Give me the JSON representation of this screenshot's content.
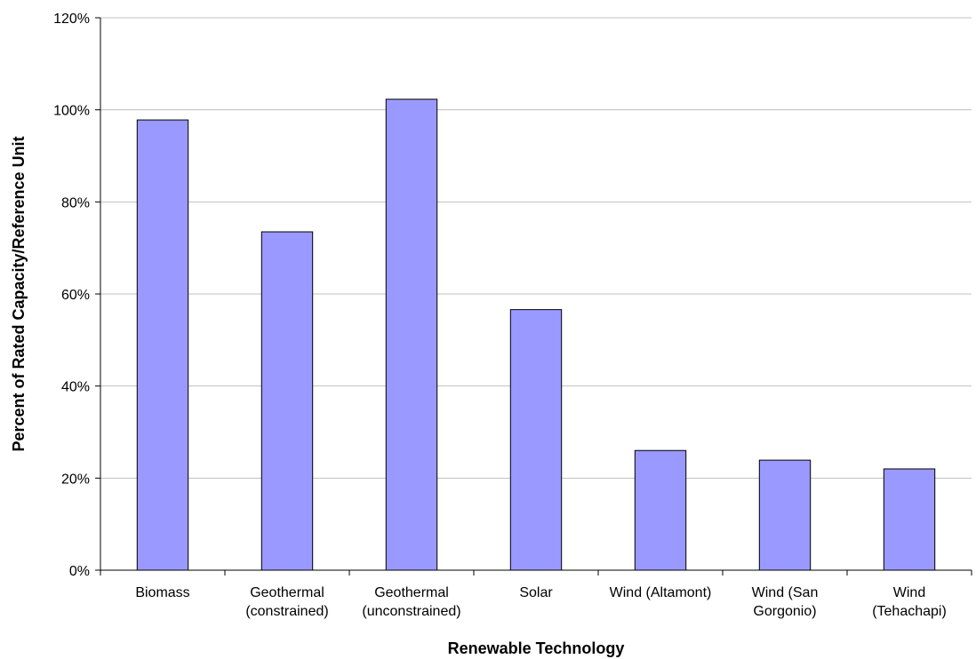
{
  "chart_data": {
    "type": "bar",
    "title": "",
    "xlabel": "Renewable Technology",
    "ylabel": "Percent of Rated Capacity/Reference Unit",
    "categories": [
      [
        "Biomass"
      ],
      [
        "Geothermal",
        "(constrained)"
      ],
      [
        "Geothermal",
        "(unconstrained)"
      ],
      [
        "Solar"
      ],
      [
        "Wind (Altamont)"
      ],
      [
        "Wind (San",
        "Gorgonio)"
      ],
      [
        "Wind",
        "(Tehachapi)"
      ]
    ],
    "values": [
      97.8,
      73.5,
      102.3,
      56.6,
      26.0,
      23.9,
      22.0
    ],
    "ylim": [
      0,
      120
    ],
    "yticks": [
      0,
      20,
      40,
      60,
      80,
      100,
      120
    ],
    "ytick_labels": [
      "0%",
      "20%",
      "40%",
      "60%",
      "80%",
      "100%",
      "120%"
    ],
    "grid": true,
    "legend": "none",
    "colors": {
      "bar_fill": "#9999ff",
      "bar_stroke": "#000000",
      "grid": "#c0c0c0",
      "axis": "#000000"
    }
  }
}
